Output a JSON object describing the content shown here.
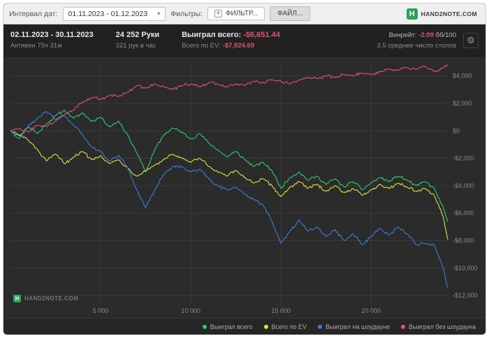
{
  "toolbar": {
    "date_interval_label": "Интервал дат:",
    "date_range": "01.11.2023 - 01.12.2023",
    "filters_label": "Фильтры:",
    "add_filter_button": "ФИЛЬТР...",
    "file_button": "ФАЙЛ...",
    "brand": "HAND2NOTE.COM"
  },
  "stats": {
    "date_range": "02.11.2023 - 30.11.2023",
    "active_time": "Активен 75ч 31м",
    "hands": "24 252 Руки",
    "hands_per_hour": "321 рук в час",
    "won_total_label": "Выиграл всего:",
    "won_total_value": "-$6,651.44",
    "ev_total_label": "Всего по EV:",
    "ev_total_value": "-$7,924.69",
    "winrate_label": "Винрейт:",
    "winrate_value": "-2.09",
    "winrate_unit": "бб/100",
    "avg_tables": "3.5 среднее число столов"
  },
  "watermark": "HAND2NOTE.COM",
  "icons": {
    "gear": "⚙",
    "chevron_down": "▾",
    "plus": "+",
    "logo_letter": "H"
  },
  "colors": {
    "brand_green": "#2aa35a",
    "negative": "#e0556a",
    "grid": "#3a3a3a",
    "axis_text": "#8a8a8a",
    "chart_bg": "#2b2b2b"
  },
  "chart_data": {
    "type": "line",
    "title": "",
    "xlabel": "",
    "ylabel": "",
    "x_range": [
      0,
      24252
    ],
    "y_range": [
      -12600,
      5100
    ],
    "x_ticks": [
      "5 000",
      "10 000",
      "15 000",
      "20 000"
    ],
    "x_tick_values": [
      5000,
      10000,
      15000,
      20000
    ],
    "y_ticks": [
      "$4,000",
      "$2,000",
      "$0",
      "-$2,000",
      "-$4,000",
      "-$6,000",
      "-$8,000",
      "-$10,000",
      "-$12,000"
    ],
    "y_tick_values": [
      4000,
      2000,
      0,
      -2000,
      -4000,
      -6000,
      -8000,
      -10000,
      -12000
    ],
    "x": [
      0,
      500,
      1000,
      1500,
      2000,
      2500,
      3000,
      3500,
      4000,
      4500,
      5000,
      5500,
      6000,
      6500,
      7000,
      7500,
      8000,
      8500,
      9000,
      9500,
      10000,
      10500,
      11000,
      11500,
      12000,
      12500,
      13000,
      13500,
      14000,
      14500,
      15000,
      15500,
      16000,
      16500,
      17000,
      17500,
      18000,
      18500,
      19000,
      19500,
      20000,
      20500,
      21000,
      21500,
      22000,
      22500,
      23000,
      23500,
      24000,
      24252
    ],
    "series": [
      {
        "name": "Выиграл всего",
        "color": "#2ecc71",
        "values": [
          0,
          -400,
          300,
          -200,
          500,
          1100,
          1500,
          900,
          1300,
          700,
          1000,
          300,
          700,
          -300,
          -1600,
          -3000,
          -1400,
          -300,
          200,
          -100,
          -600,
          -200,
          -900,
          -1400,
          -1900,
          -1500,
          -2100,
          -2600,
          -2300,
          -2900,
          -4200,
          -3400,
          -3000,
          -3600,
          -3300,
          -3900,
          -3500,
          -4100,
          -3700,
          -4300,
          -3800,
          -3400,
          -3700,
          -3300,
          -3600,
          -4000,
          -3700,
          -4200,
          -5600,
          -6651
        ]
      },
      {
        "name": "Всего по EV",
        "color": "#e2e23a",
        "values": [
          0,
          -300,
          -700,
          -1400,
          -2200,
          -1700,
          -2400,
          -1900,
          -1500,
          -2100,
          -1800,
          -2400,
          -2100,
          -2700,
          -3300,
          -2900,
          -2500,
          -2100,
          -1700,
          -2000,
          -2300,
          -2000,
          -2600,
          -3000,
          -3300,
          -2900,
          -3400,
          -3800,
          -3500,
          -4000,
          -4800,
          -4100,
          -3700,
          -4200,
          -3900,
          -4400,
          -4000,
          -4500,
          -4200,
          -4700,
          -4300,
          -3900,
          -4200,
          -3800,
          -4100,
          -4400,
          -4200,
          -4700,
          -6300,
          -7925
        ]
      },
      {
        "name": "Выиграл на шоудауне",
        "color": "#3a7fd5",
        "values": [
          0,
          -600,
          400,
          900,
          1400,
          800,
          1100,
          400,
          -300,
          -1200,
          -1500,
          -2200,
          -1800,
          -2700,
          -4300,
          -5600,
          -4300,
          -3200,
          -2600,
          -2600,
          -3000,
          -2800,
          -3500,
          -4000,
          -4300,
          -4100,
          -4600,
          -5000,
          -5400,
          -6600,
          -8200,
          -7300,
          -6500,
          -7300,
          -7000,
          -7700,
          -7200,
          -8000,
          -7500,
          -8300,
          -7700,
          -7100,
          -7600,
          -7000,
          -7500,
          -8300,
          -8200,
          -8300,
          -10000,
          -11451
        ]
      },
      {
        "name": "Выиграл без шоудауна",
        "color": "#e8506e",
        "values": [
          0,
          150,
          -100,
          400,
          300,
          700,
          1200,
          1500,
          2100,
          2400,
          2300,
          2600,
          2500,
          2800,
          3300,
          3100,
          3400,
          3200,
          3000,
          3300,
          3400,
          3200,
          3500,
          3400,
          3200,
          3400,
          3300,
          3600,
          3500,
          3700,
          3600,
          3400,
          3700,
          3900,
          3800,
          4000,
          3900,
          4100,
          4000,
          4200,
          4100,
          4300,
          4500,
          4400,
          4600,
          4500,
          4700,
          4300,
          4600,
          4800
        ]
      }
    ]
  }
}
